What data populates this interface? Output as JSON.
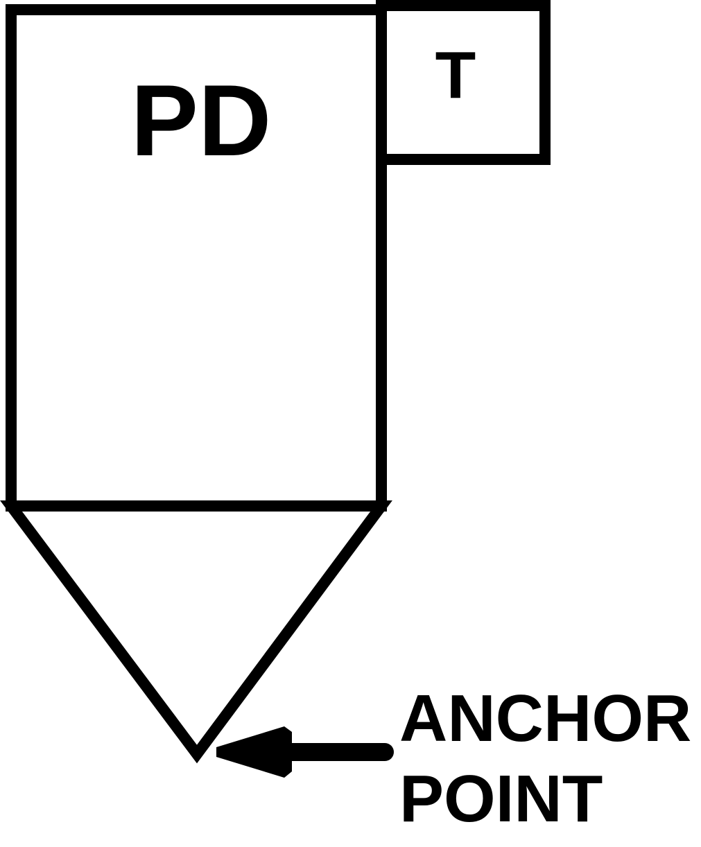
{
  "diagram": {
    "main_box_label": "PD",
    "tab_box_label": "T",
    "anchor_label_line1": "ANCHOR",
    "anchor_label_line2": "POINT"
  },
  "colors": {
    "stroke": "#000000",
    "background": "#ffffff"
  }
}
